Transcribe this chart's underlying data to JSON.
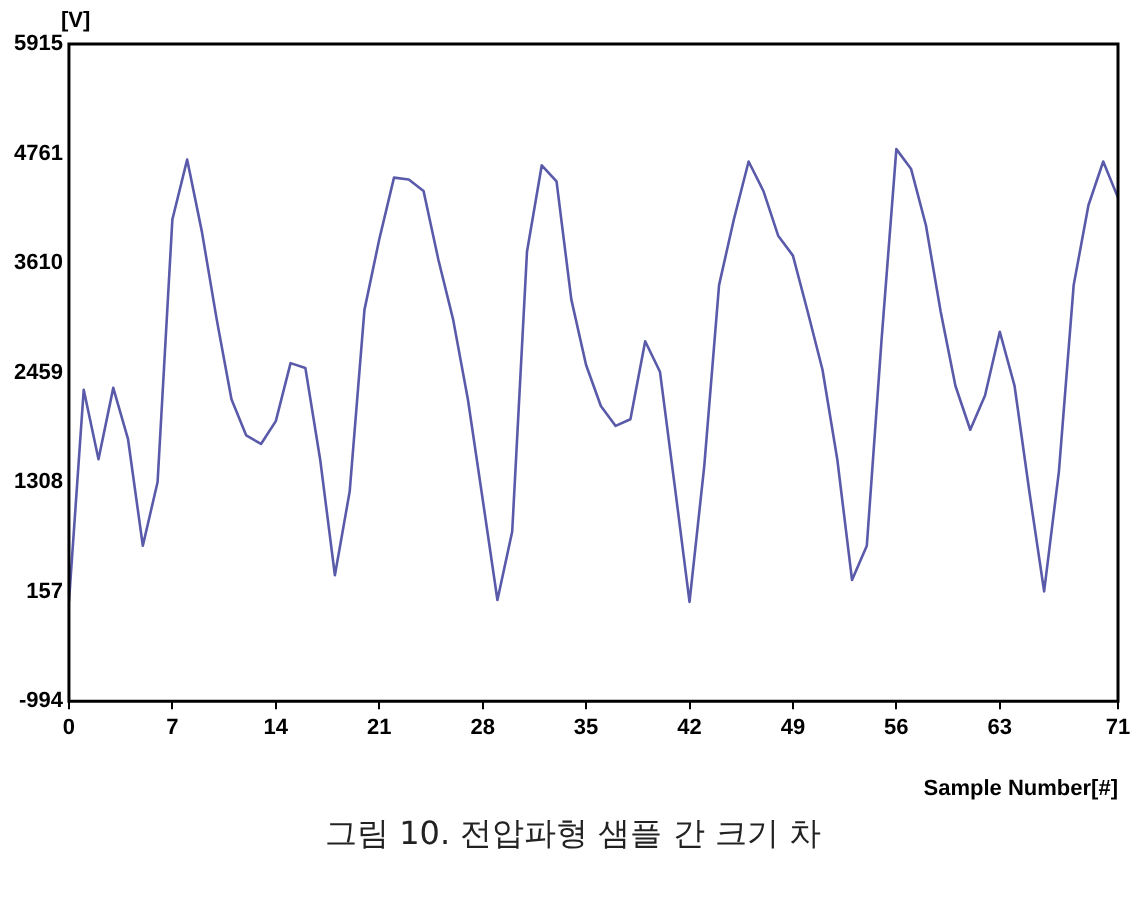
{
  "chart_data": {
    "type": "line",
    "xlabel": "Sample Number[#]",
    "ylabel": "[V]",
    "annotations": [
      "그림 10. 전압파형 샘플 간 크기 차"
    ],
    "x": [
      0,
      1,
      2,
      3,
      4,
      5,
      6,
      7,
      8,
      9,
      10,
      11,
      12,
      13,
      14,
      15,
      16,
      17,
      18,
      19,
      20,
      21,
      22,
      23,
      24,
      25,
      26,
      27,
      28,
      29,
      30,
      31,
      32,
      33,
      34,
      35,
      36,
      37,
      38,
      39,
      40,
      41,
      42,
      43,
      44,
      45,
      46,
      47,
      48,
      49,
      50,
      51,
      52,
      53,
      54,
      55,
      56,
      57,
      58,
      59,
      60,
      61,
      62,
      63,
      64,
      65,
      66,
      67,
      68,
      69,
      70,
      71
    ],
    "series": [
      {
        "color": "#5a5aaa",
        "values": [
          50,
          2280,
          1550,
          2300,
          1760,
          640,
          1310,
          4070,
          4700,
          3940,
          3020,
          2180,
          1800,
          1710,
          1950,
          2560,
          2510,
          1550,
          330,
          1210,
          3120,
          3860,
          4510,
          4490,
          4370,
          3650,
          3020,
          2180,
          1130,
          70,
          790,
          3730,
          4640,
          4470,
          3230,
          2540,
          2110,
          1900,
          1970,
          2790,
          2470,
          1270,
          50,
          1480,
          3380,
          4070,
          4680,
          4370,
          3900,
          3690,
          3100,
          2490,
          1550,
          280,
          640,
          2810,
          4810,
          4600,
          4010,
          3100,
          2320,
          1860,
          2220,
          2890,
          2320,
          1210,
          160,
          1420,
          3380,
          4220,
          4680,
          4300
        ]
      }
    ],
    "xlim": [
      0,
      71
    ],
    "xticks": [
      0,
      7,
      14,
      21,
      28,
      35,
      42,
      49,
      56,
      63,
      71
    ],
    "ylim": [
      -994,
      5915
    ],
    "yticks": [
      -994,
      157,
      1308,
      2459,
      3610,
      4761,
      5915
    ],
    "grid": false,
    "legend": false,
    "marker": "none",
    "line_style": "solid"
  }
}
